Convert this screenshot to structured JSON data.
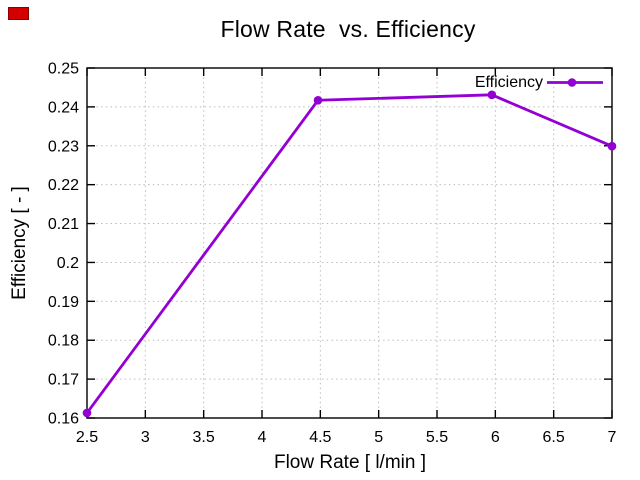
{
  "window": {
    "background": "#ffffff"
  },
  "annotation_box": {
    "color": "#d40000",
    "border_color": "#8b0000"
  },
  "colors": {
    "axis": "#000000",
    "grid": "#bcbcbc",
    "text": "#000000"
  },
  "chart_data": {
    "type": "line",
    "title": "Flow Rate  vs. Efficiency",
    "xlabel": "Flow Rate [ l/min ]",
    "ylabel": "Efficiency [ - ]",
    "grid": true,
    "legend_position": "top-right-inside",
    "xlim": [
      2.5,
      7
    ],
    "ylim": [
      0.16,
      0.25
    ],
    "xticks": {
      "values": [
        2.5,
        3,
        3.5,
        4,
        4.5,
        5,
        5.5,
        6,
        6.5,
        7
      ],
      "labels": [
        "2.5",
        "3",
        "3.5",
        "4",
        "4.5",
        "5",
        "5.5",
        "6",
        "6.5",
        "7"
      ]
    },
    "yticks": {
      "values": [
        0.16,
        0.17,
        0.18,
        0.19,
        0.2,
        0.21,
        0.22,
        0.23,
        0.24,
        0.25
      ],
      "labels": [
        "0.16",
        "0.17",
        "0.18",
        "0.19",
        "0.2",
        "0.21",
        "0.22",
        "0.23",
        "0.24",
        "0.25"
      ]
    },
    "series": [
      {
        "name": "Efficiency",
        "color": "#9400d3",
        "marker": "circle",
        "points": [
          [
            2.5,
            0.1613
          ],
          [
            4.48,
            0.2417
          ],
          [
            5.97,
            0.2431
          ],
          [
            7.0,
            0.2299
          ]
        ]
      }
    ]
  }
}
